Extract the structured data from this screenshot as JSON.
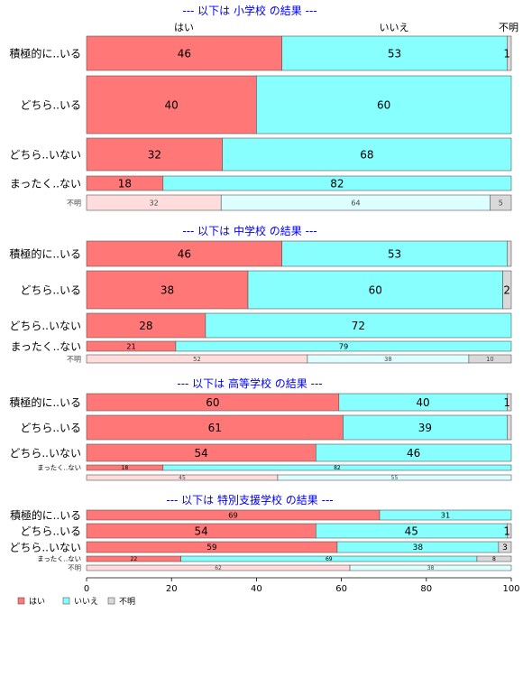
{
  "chart_data": {
    "type": "bar",
    "orientation": "horizontal",
    "stacked": true,
    "percent": true,
    "xlim": [
      0,
      100
    ],
    "x_ticks": [
      "0",
      "20",
      "40",
      "60",
      "80",
      "100"
    ],
    "column_headers": [
      "はい",
      "いいえ",
      "不明"
    ],
    "legend": {
      "position": "bottom-left",
      "entries": [
        {
          "label": "はい",
          "color": "#ff7777"
        },
        {
          "label": "いいえ",
          "color": "#88ffff"
        },
        {
          "label": "不明",
          "color": "#d9d9d9"
        }
      ]
    },
    "panels": [
      {
        "title": "--- 以下は 小学校 の結果 ---",
        "rows": [
          {
            "category": "積極的に..いる",
            "values": [
              46,
              53,
              1
            ],
            "labels": [
              "46",
              "53",
              "1"
            ]
          },
          {
            "category": "どちら..いる",
            "values": [
              40,
              60,
              0
            ],
            "labels": [
              "40",
              "60",
              ""
            ]
          },
          {
            "category": "どちら..いない",
            "values": [
              32,
              68,
              0
            ],
            "labels": [
              "32",
              "68",
              ""
            ]
          },
          {
            "category": "まったく..ない",
            "values": [
              18,
              82,
              0
            ],
            "labels": [
              "18",
              "82",
              ""
            ]
          },
          {
            "category": "不明",
            "values": [
              32,
              64,
              5
            ],
            "labels": [
              "32",
              "64",
              "5"
            ]
          }
        ]
      },
      {
        "title": "--- 以下は 中学校 の結果 ---",
        "rows": [
          {
            "category": "積極的に..いる",
            "values": [
              46,
              53,
              1
            ],
            "labels": [
              "46",
              "53",
              ""
            ]
          },
          {
            "category": "どちら..いる",
            "values": [
              38,
              60,
              2
            ],
            "labels": [
              "38",
              "60",
              "2"
            ]
          },
          {
            "category": "どちら..いない",
            "values": [
              28,
              72,
              0
            ],
            "labels": [
              "28",
              "72",
              ""
            ]
          },
          {
            "category": "まったく..ない",
            "values": [
              21,
              79,
              0
            ],
            "labels": [
              "21",
              "79",
              ""
            ]
          },
          {
            "category": "不明",
            "values": [
              52,
              38,
              10
            ],
            "labels": [
              "52",
              "38",
              "10"
            ]
          }
        ]
      },
      {
        "title": "--- 以下は 高等学校 の結果 ---",
        "rows": [
          {
            "category": "積極的に..いる",
            "values": [
              60,
              40,
              1
            ],
            "labels": [
              "60",
              "40",
              "1"
            ]
          },
          {
            "category": "どちら..いる",
            "values": [
              61,
              39,
              1
            ],
            "labels": [
              "61",
              "39",
              ""
            ]
          },
          {
            "category": "どちら..いない",
            "values": [
              54,
              46,
              0
            ],
            "labels": [
              "54",
              "46",
              ""
            ]
          },
          {
            "category": "まったく..ない",
            "values": [
              18,
              82,
              0
            ],
            "labels": [
              "18",
              "82",
              ""
            ]
          },
          {
            "category": "",
            "values": [
              45,
              55,
              0
            ],
            "labels": [
              "45",
              "55",
              ""
            ]
          }
        ]
      },
      {
        "title": "--- 以下は 特別支援学校 の結果 ---",
        "rows": [
          {
            "category": "積極的に..いる",
            "values": [
              69,
              31,
              0
            ],
            "labels": [
              "69",
              "31",
              ""
            ]
          },
          {
            "category": "どちら..いる",
            "values": [
              54,
              45,
              1
            ],
            "labels": [
              "54",
              "45",
              "1"
            ]
          },
          {
            "category": "どちら..いない",
            "values": [
              59,
              38,
              3
            ],
            "labels": [
              "59",
              "38",
              "3"
            ]
          },
          {
            "category": "まったく..ない",
            "values": [
              22,
              69,
              8
            ],
            "labels": [
              "22",
              "69",
              "8"
            ]
          },
          {
            "category": "不明",
            "values": [
              62,
              38,
              0
            ],
            "labels": [
              "62",
              "38",
              ""
            ]
          }
        ]
      }
    ]
  }
}
